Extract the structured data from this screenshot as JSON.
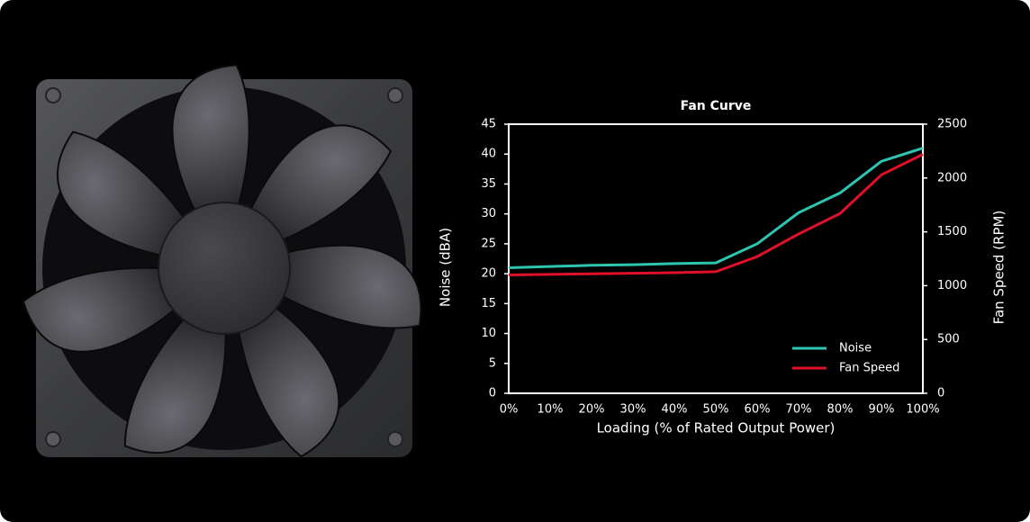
{
  "chart_data": {
    "type": "line",
    "title": "Fan Curve",
    "x_label": "Loading (% of Rated Output Power)",
    "y_label": "Noise (dBA)",
    "y2_label": "Fan Speed (RPM)",
    "categories": [
      "0%",
      "10%",
      "20%",
      "30%",
      "40%",
      "50%",
      "60%",
      "70%",
      "80%",
      "90%",
      "100%"
    ],
    "series": [
      {
        "name": "Noise",
        "color": "#2ec4b0",
        "values": [
          21,
          21.2,
          21.4,
          21.5,
          21.7,
          21.8,
          25,
          30.2,
          33.5,
          38.8,
          41
        ]
      },
      {
        "name": "Fan Speed",
        "color": "#e0102a",
        "axis": "y2",
        "values": [
          1100,
          1105,
          1110,
          1115,
          1120,
          1130,
          1270,
          1480,
          1670,
          2030,
          2220
        ]
      }
    ],
    "ylim": [
      0,
      45
    ],
    "yticks": [
      0,
      5,
      10,
      15,
      20,
      25,
      30,
      35,
      40,
      45
    ],
    "y2lim": [
      0,
      2500
    ],
    "y2ticks": [
      0,
      500,
      1000,
      1500,
      2000,
      2500
    ],
    "legend": "lower right"
  }
}
